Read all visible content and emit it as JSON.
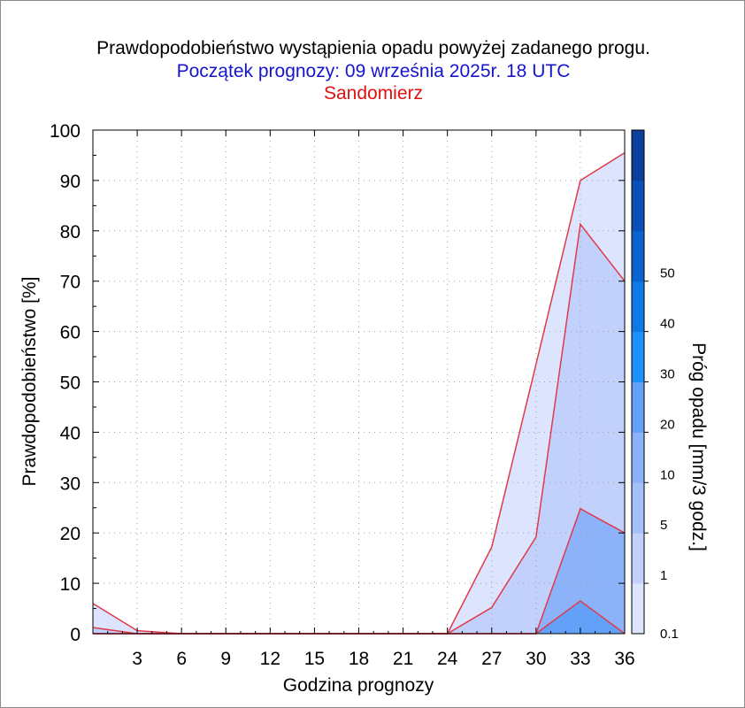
{
  "title": "Prawdopodobieństwo wystąpienia opadu powyżej zadanego progu.",
  "subtitle": "Początek prognozy: 09 września 2025r. 18 UTC",
  "location": "Sandomierz",
  "colors": {
    "title": "#000000",
    "subtitle": "#1515d0",
    "location": "#e01010",
    "series_line": "#e03a4a"
  },
  "chart_data": {
    "type": "area",
    "xlabel": "Godzina prognozy",
    "ylabel": "Prawdopodobieństwo [%]",
    "colorbar_label": "Próg opadu [mm/3 godz.]",
    "xlim": [
      0,
      36
    ],
    "ylim": [
      0,
      100
    ],
    "x": [
      0,
      3,
      6,
      9,
      12,
      15,
      18,
      21,
      24,
      27,
      30,
      33,
      36
    ],
    "x_tick_labels": [
      "3",
      "6",
      "9",
      "12",
      "15",
      "18",
      "21",
      "24",
      "27",
      "30",
      "33",
      "36"
    ],
    "y_tick_labels": [
      "0",
      "10",
      "20",
      "30",
      "40",
      "50",
      "60",
      "70",
      "80",
      "90",
      "100"
    ],
    "grid": true,
    "series": [
      {
        "name": "0.1",
        "color": "#dde4fd",
        "values": [
          6,
          0.6,
          0,
          0,
          0,
          0,
          0,
          0,
          0,
          17.2,
          53.5,
          90,
          95.5
        ]
      },
      {
        "name": "1",
        "color": "#c2d1fb",
        "values": [
          1.2,
          0,
          0,
          0,
          0,
          0,
          0,
          0,
          0,
          5.2,
          19.2,
          81.3,
          70
        ]
      },
      {
        "name": "5",
        "color": "#8cb2fa",
        "values": [
          0,
          0,
          0,
          0,
          0,
          0,
          0,
          0,
          0,
          0,
          0,
          24.8,
          20
        ]
      },
      {
        "name": "10",
        "color": "#63a0f7",
        "values": [
          0,
          0,
          0,
          0,
          0,
          0,
          0,
          0,
          0,
          0,
          0,
          6.5,
          0
        ]
      }
    ],
    "colorbar": {
      "labels": [
        "0.1",
        "1",
        "5",
        "10",
        "20",
        "30",
        "40",
        "50"
      ],
      "colors": [
        "#dde4fd",
        "#c2d1fb",
        "#a6c0fa",
        "#8cb2fa",
        "#63a0f7",
        "#1e90fa",
        "#0f79e6",
        "#0a63cf",
        "#0c4fb6",
        "#0a3f9b"
      ]
    }
  }
}
